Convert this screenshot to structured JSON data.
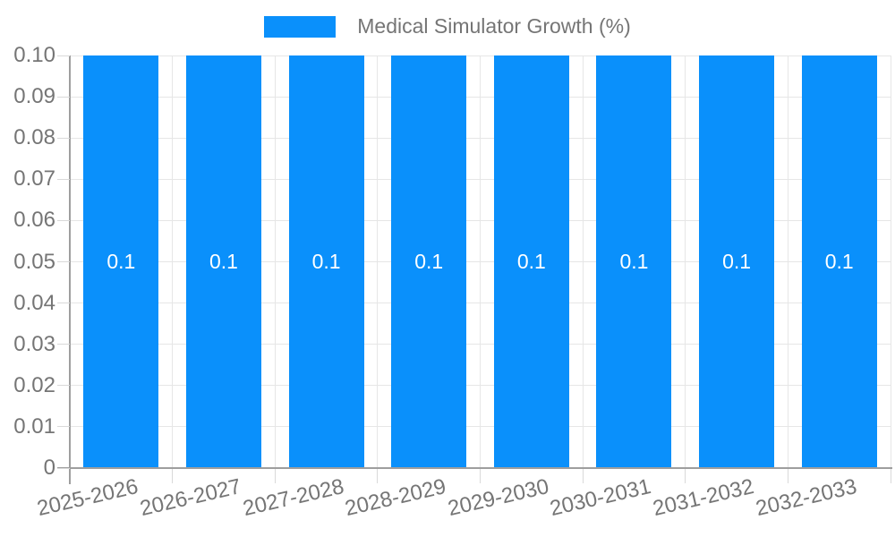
{
  "chart_data": {
    "type": "bar",
    "title": "Medical Simulator Growth (%)",
    "legend": {
      "position": "top-center",
      "entries": [
        "Medical Simulator Growth (%)"
      ]
    },
    "categories": [
      "2025-2026",
      "2026-2027",
      "2027-2028",
      "2028-2029",
      "2029-2030",
      "2030-2031",
      "2031-2032",
      "2032-2033"
    ],
    "series": [
      {
        "name": "Medical Simulator Growth (%)",
        "values": [
          0.1,
          0.1,
          0.1,
          0.1,
          0.1,
          0.1,
          0.1,
          0.1
        ]
      }
    ],
    "bar_labels": [
      "0.1",
      "0.1",
      "0.1",
      "0.1",
      "0.1",
      "0.1",
      "0.1",
      "0.1"
    ],
    "xlabel": "",
    "ylabel": "",
    "ylim": [
      0,
      0.1
    ],
    "ytick_labels": [
      "0",
      "0.01",
      "0.02",
      "0.03",
      "0.04",
      "0.05",
      "0.06",
      "0.07",
      "0.08",
      "0.09",
      "0.10"
    ],
    "grid": true,
    "colors": {
      "bar": "#0a90fb",
      "axis_text": "#757575",
      "gridline": "#e6e6e6",
      "tick": "#d9d9d9",
      "axis_line": "#9e9e9e",
      "bar_label": "#ffffff",
      "background": "#ffffff"
    }
  }
}
